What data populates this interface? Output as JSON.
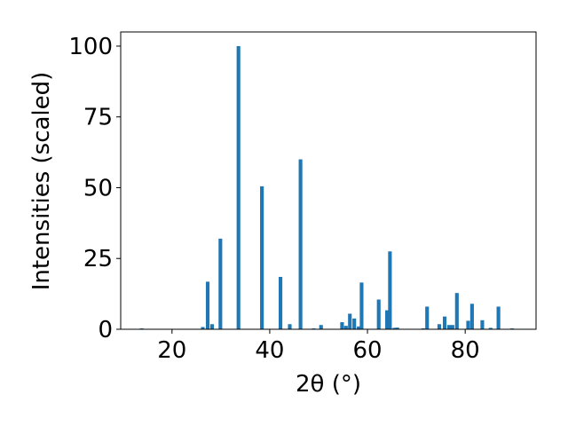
{
  "chart_data": {
    "type": "bar",
    "xlabel": "2θ (°)",
    "ylabel": "Intensities (scaled)",
    "xlim": [
      9.5,
      94.5
    ],
    "ylim": [
      0,
      105
    ],
    "xticks": [
      20,
      40,
      60,
      80
    ],
    "yticks": [
      0,
      25,
      50,
      75,
      100
    ],
    "bar_color": "#1f77b4",
    "bar_width_deg": 0.75,
    "x": [
      13.8,
      26.3,
      27.3,
      28.2,
      29.9,
      33.6,
      38.4,
      42.2,
      44.1,
      46.3,
      49.0,
      50.5,
      54.8,
      55.6,
      56.4,
      57.3,
      58.2,
      58.8,
      62.3,
      64.0,
      64.6,
      65.5,
      66.1,
      71.4,
      72.2,
      74.7,
      75.8,
      76.7,
      77.4,
      78.3,
      80.6,
      81.4,
      83.5,
      85.2,
      86.8,
      89.6
    ],
    "values": [
      0.3,
      0.8,
      16.8,
      1.8,
      32.0,
      100.0,
      50.5,
      18.5,
      1.8,
      60.0,
      0.3,
      1.5,
      2.5,
      1.2,
      5.5,
      3.8,
      1.0,
      16.5,
      10.5,
      6.7,
      27.5,
      0.5,
      0.6,
      0.3,
      8.0,
      1.8,
      4.5,
      1.5,
      1.5,
      12.8,
      3.0,
      9.0,
      3.2,
      0.5,
      8.0,
      0.3
    ]
  }
}
